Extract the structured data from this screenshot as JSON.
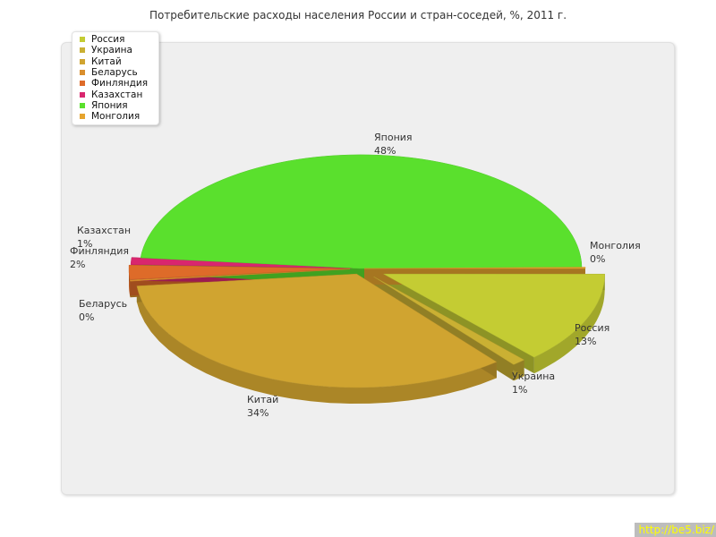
{
  "chart_data": {
    "type": "pie",
    "title": "Потребительские расходы населения России и стран-соседей, %, 2011 г.",
    "categories": [
      "Россия",
      "Украина",
      "Китай",
      "Беларусь",
      "Финляндия",
      "Казахстан",
      "Япония",
      "Монголия"
    ],
    "values": [
      13,
      1,
      34,
      0,
      2,
      1,
      48,
      0
    ],
    "value_labels": [
      "13%",
      "1%",
      "34%",
      "0%",
      "2%",
      "1%",
      "48%",
      "0%"
    ],
    "colors": [
      "#c4cc33",
      "#cab033",
      "#d0a430",
      "#d98e2d",
      "#de6b29",
      "#d9266e",
      "#5ae02d",
      "#e6a42e"
    ],
    "legend": "top-left",
    "style": "3d-exploded"
  },
  "watermark": "http://be5.biz/"
}
